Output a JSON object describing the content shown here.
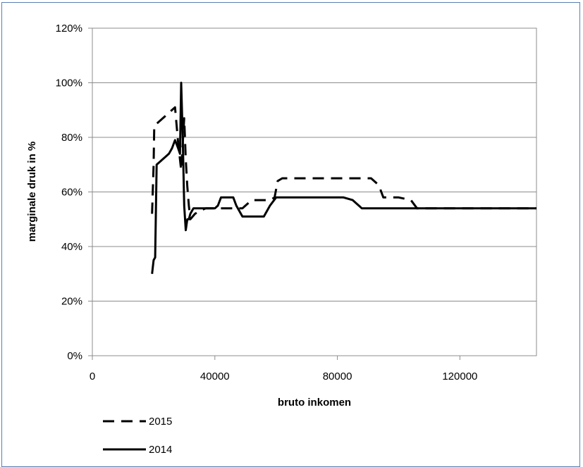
{
  "chart_data": {
    "type": "line",
    "title": "",
    "xlabel": "bruto inkomen",
    "ylabel": "marginale druk in %",
    "xlim": [
      0,
      145000
    ],
    "ylim": [
      0,
      120
    ],
    "x_ticks": [
      "0",
      "40000",
      "80000",
      "120000"
    ],
    "x_tick_values": [
      0,
      40000,
      80000,
      120000
    ],
    "y_ticks": [
      "0%",
      "20%",
      "40%",
      "60%",
      "80%",
      "100%",
      "120%"
    ],
    "y_tick_values": [
      0,
      20,
      40,
      60,
      80,
      100,
      120
    ],
    "grid": "horizontal",
    "legend_position": "bottom-left",
    "series": [
      {
        "name": "2015",
        "style": "dashed",
        "color": "#000000",
        "x": [
          19500,
          20000,
          20200,
          21000,
          22000,
          25000,
          27000,
          28000,
          29000,
          30000,
          30500,
          31000,
          31500,
          32000,
          33500,
          35000,
          37000,
          45000,
          49000,
          50000,
          52000,
          58000,
          59500,
          60500,
          62000,
          80000,
          88000,
          91000,
          93000,
          94000,
          95000,
          100000,
          104000,
          106000,
          145000
        ],
        "y": [
          52,
          70,
          84,
          85,
          86,
          89,
          91,
          78,
          68,
          87,
          72,
          62,
          55,
          50,
          52,
          53,
          54,
          54,
          54,
          55,
          57,
          57,
          58,
          64,
          65,
          65,
          65,
          65,
          63,
          61,
          58,
          58,
          57,
          54,
          54
        ]
      },
      {
        "name": "2014",
        "style": "solid",
        "color": "#000000",
        "x": [
          19500,
          20000,
          20500,
          21000,
          22000,
          23000,
          24000,
          25000,
          26000,
          27000,
          28000,
          28600,
          29000,
          29500,
          30000,
          30500,
          31000,
          31500,
          32000,
          33000,
          34000,
          36000,
          40000,
          41000,
          42000,
          44000,
          45000,
          46000,
          47000,
          49000,
          55000,
          56000,
          58000,
          60000,
          62000,
          70000,
          82000,
          85000,
          87000,
          88000,
          90000,
          145000
        ],
        "y": [
          30,
          35,
          36,
          70,
          71,
          72,
          73,
          74,
          76,
          79,
          76,
          74,
          100,
          80,
          55,
          46,
          50,
          50,
          52,
          54,
          54,
          54,
          54,
          55,
          58,
          58,
          58,
          58,
          55,
          51,
          51,
          51,
          55,
          58,
          58,
          58,
          58,
          57,
          55,
          54,
          54,
          54
        ]
      }
    ]
  }
}
